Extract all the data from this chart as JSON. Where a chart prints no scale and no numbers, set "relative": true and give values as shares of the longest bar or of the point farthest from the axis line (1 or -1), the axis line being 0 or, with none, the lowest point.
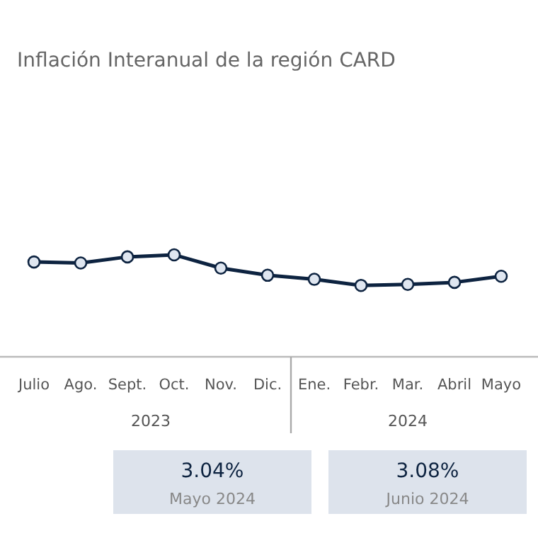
{
  "chart_data": {
    "type": "line",
    "title": "Inflación Interanual de la región CARD",
    "categories": [
      "Julio",
      "Ago.",
      "Sept.",
      "Oct.",
      "Nov.",
      "Dic.",
      "Ene.",
      "Febr.",
      "Mar.",
      "Abril",
      "Mayo"
    ],
    "values": [
      0.93,
      0.92,
      0.98,
      1,
      0.87,
      0.8,
      0.76,
      0.7,
      0.71,
      0.73,
      0.79
    ],
    "relative": true,
    "color": "#0d2340",
    "marker": "circle",
    "annotations": [
      "2023",
      "2024",
      "3.04%",
      "Mayo 2024",
      "3.08%",
      "Junio 2024"
    ]
  }
}
